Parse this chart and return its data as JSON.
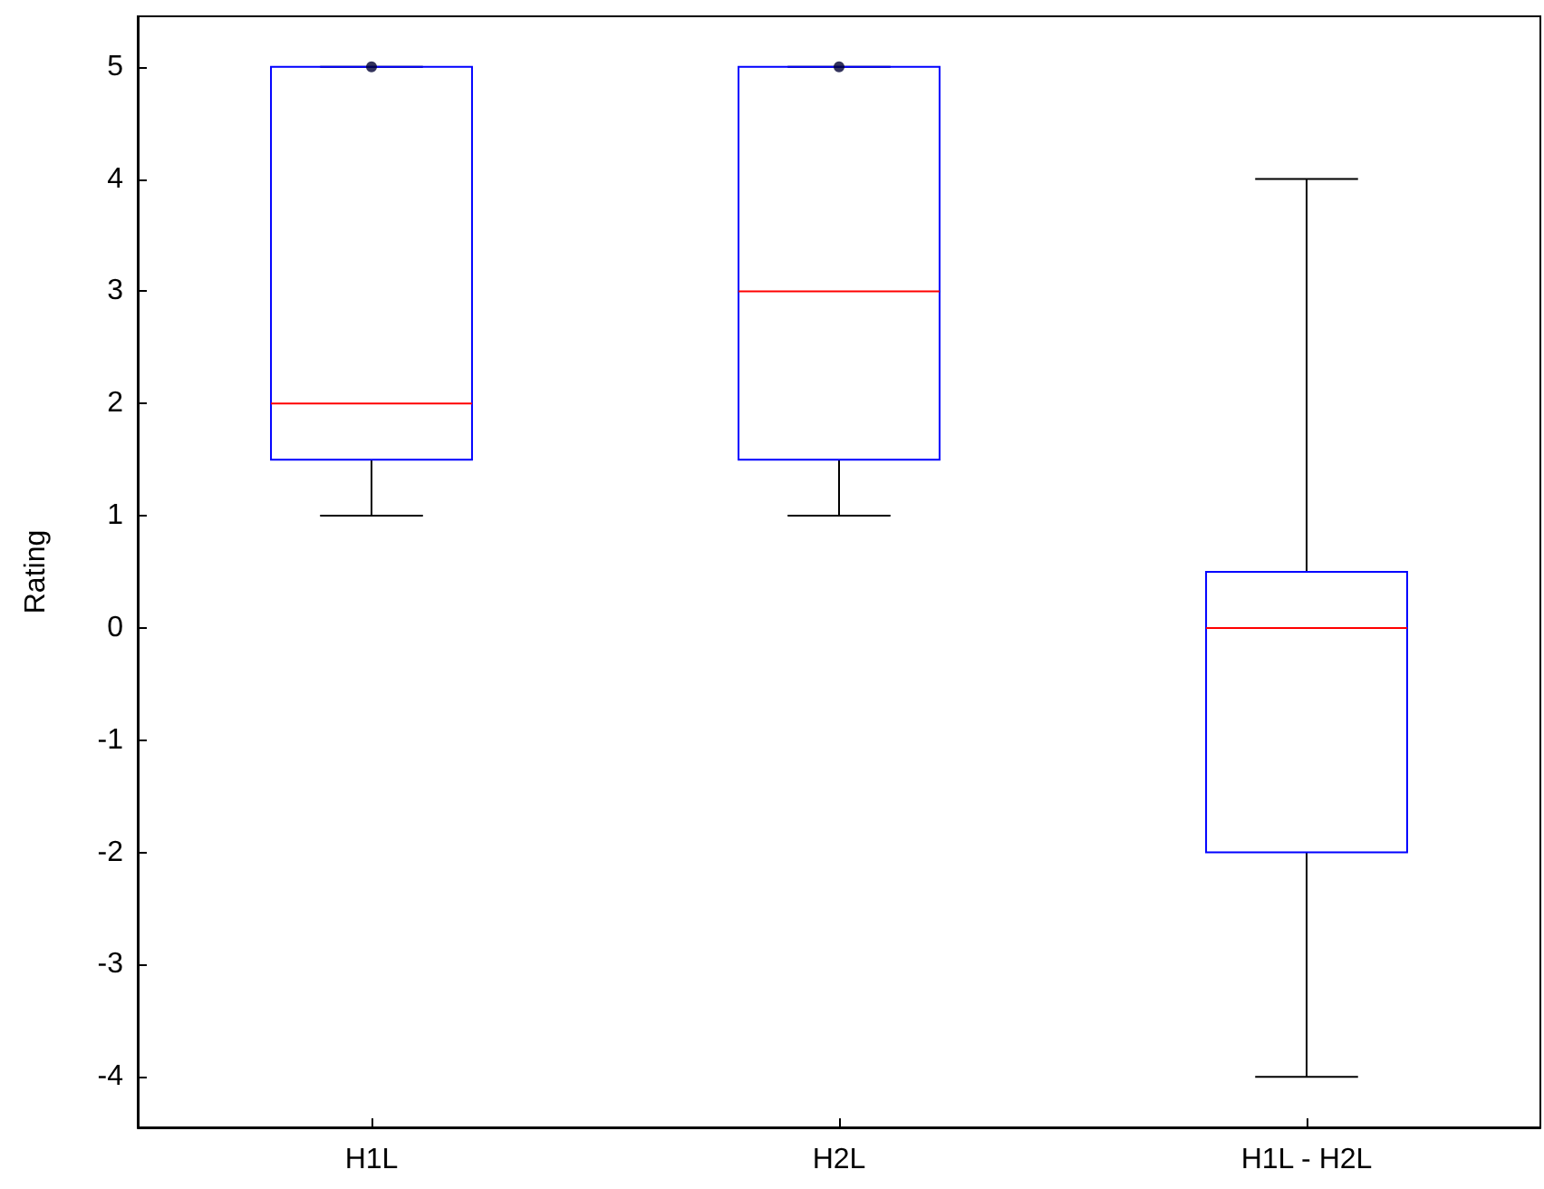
{
  "chart_data": {
    "type": "box",
    "ylabel": "Rating",
    "categories": [
      "H1L",
      "H2L",
      "H1L - H2L"
    ],
    "color": "#0000ff",
    "boxes": [
      {
        "low": 1,
        "q1": 1.5,
        "median": 2,
        "q3": 5,
        "high": 5
      },
      {
        "low": 1,
        "q1": 1.5,
        "median": 3,
        "q3": 5,
        "high": 5
      },
      {
        "low": -4,
        "q1": -2,
        "median": 0,
        "q3": 0.5,
        "high": 4
      }
    ],
    "series": [
      {
        "type": "scatter",
        "color": "#000033",
        "x": [
          "H1L",
          "H2L"
        ],
        "values": [
          5,
          5
        ]
      }
    ],
    "ylim": [
      -4.45,
      5.45
    ],
    "yticks": [
      -4,
      -3,
      -2,
      -1,
      0,
      1,
      2,
      3,
      4,
      5
    ],
    "grid": false,
    "marker": "circle"
  }
}
